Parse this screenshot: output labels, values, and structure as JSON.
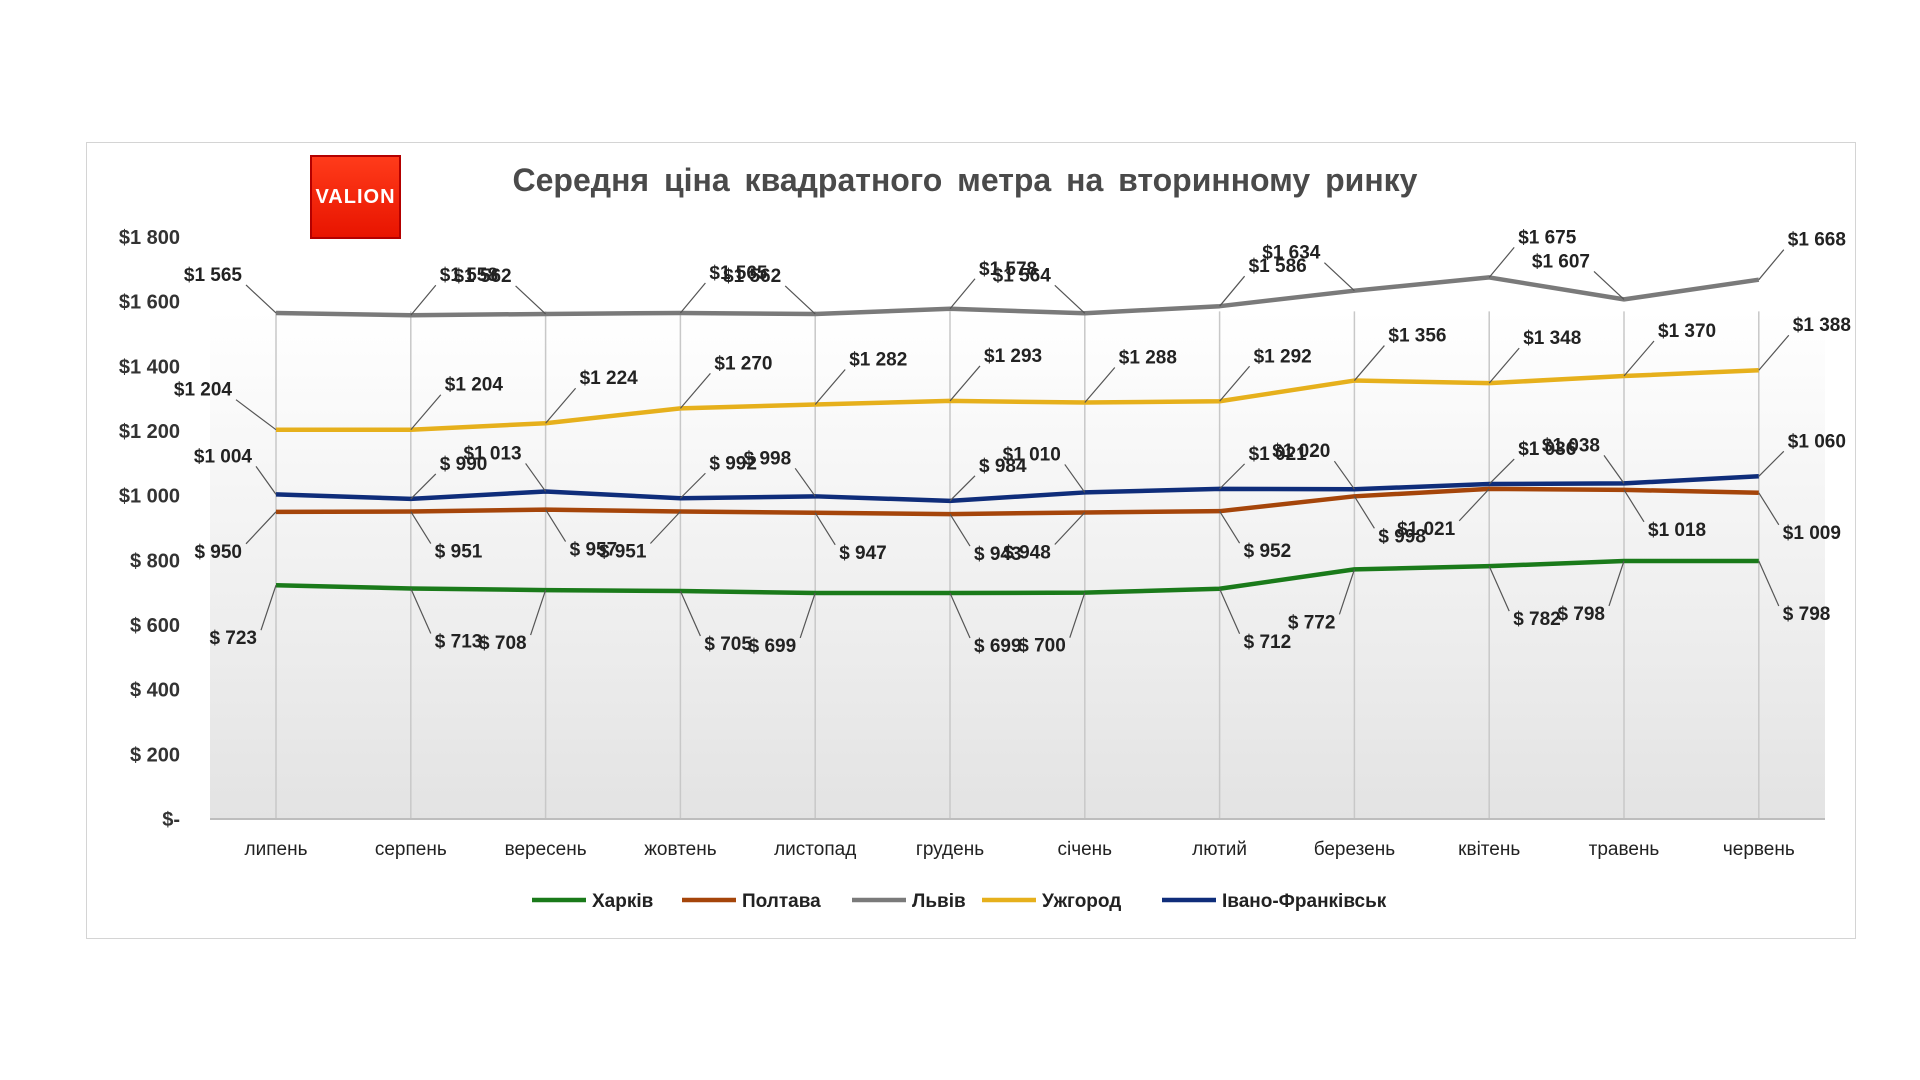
{
  "logo_text": "VALION",
  "chart_data": {
    "type": "line",
    "title": "Середня ціна квадратного метра на вторинному ринку",
    "categories": [
      "липень",
      "серпень",
      "вересень",
      "жовтень",
      "листопад",
      "грудень",
      "січень",
      "лютий",
      "березень",
      "квітень",
      "травень",
      "червень"
    ],
    "ylim": [
      0,
      1800
    ],
    "yticks": [
      0,
      200,
      400,
      600,
      800,
      1000,
      1200,
      1400,
      1600,
      1800
    ],
    "ytick_labels": [
      "$-",
      "$ 200",
      "$ 400",
      "$ 600",
      "$ 800",
      "$1 000",
      "$1 200",
      "$1 400",
      "$1 600",
      "$1 800"
    ],
    "grid": "vertical category lines",
    "legend_position": "bottom",
    "series": [
      {
        "name": "Харків",
        "color": "#1a7a1a",
        "values": [
          723,
          713,
          708,
          705,
          699,
          699,
          700,
          712,
          772,
          782,
          798,
          798
        ],
        "labels": [
          "$ 723",
          "$ 713",
          "$ 708",
          "$ 705",
          "$ 699",
          "$ 699",
          "$ 700",
          "$ 712",
          "$ 772",
          "$ 782",
          "$ 798",
          "$ 798"
        ]
      },
      {
        "name": "Полтава",
        "color": "#a5450a",
        "values": [
          950,
          951,
          957,
          951,
          947,
          943,
          948,
          952,
          998,
          1021,
          1018,
          1009
        ],
        "labels": [
          "$ 950",
          "$ 951",
          "$ 957",
          "$ 951",
          "$ 947",
          "$ 943",
          "$ 948",
          "$ 952",
          "$ 998",
          "$1 021",
          "$1 018",
          "$1 009"
        ]
      },
      {
        "name": "Львів",
        "color": "#7a7a7a",
        "values": [
          1565,
          1558,
          1562,
          1565,
          1562,
          1578,
          1564,
          1586,
          1634,
          1675,
          1607,
          1668
        ],
        "labels": [
          "$1 565",
          "$1 558",
          "$1 562",
          "$1 565",
          "$1 562",
          "$1 578",
          "$1 564",
          "$1 586",
          "$1 634",
          "$1 675",
          "$1 607",
          "$1 668"
        ]
      },
      {
        "name": "Ужгород",
        "color": "#e6b01c",
        "values": [
          1204,
          1204,
          1224,
          1270,
          1282,
          1293,
          1288,
          1292,
          1356,
          1348,
          1370,
          1388
        ],
        "labels": [
          "$1 204",
          "$1 204",
          "$1 224",
          "$1 270",
          "$1 282",
          "$1 293",
          "$1 288",
          "$1 292",
          "$1 356",
          "$1 348",
          "$1 370",
          "$1 388"
        ]
      },
      {
        "name": "Івано-Франківськ",
        "color": "#0f2d7a",
        "values": [
          1004,
          990,
          1013,
          992,
          998,
          984,
          1010,
          1021,
          1020,
          1036,
          1038,
          1060
        ],
        "labels": [
          "$1 004",
          "$ 990",
          "$1 013",
          "$ 992",
          "$ 998",
          "$ 984",
          "$1 010",
          "$1 021",
          "$1 020",
          "$1 036",
          "$1 038",
          "$1 060"
        ]
      }
    ]
  }
}
